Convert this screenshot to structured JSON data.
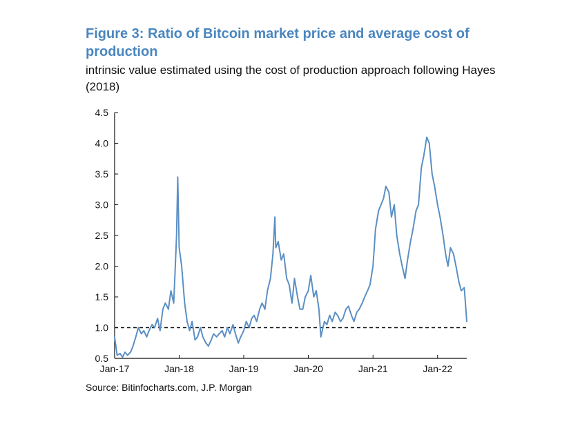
{
  "title": "Figure 3: Ratio of Bitcoin market price and average cost of production",
  "subtitle": "intrinsic value estimated using the cost of production approach following Hayes (2018)",
  "source": "Source: Bitinfocharts.com, J.P. Morgan",
  "colors": {
    "title": "#4a86bf",
    "series": "#5b8fc4",
    "axis": "#111111",
    "reference_line": "#111111"
  },
  "chart_data": {
    "type": "line",
    "title": "Figure 3: Ratio of Bitcoin market price and average cost of production",
    "subtitle": "intrinsic value estimated using the cost of production approach following Hayes (2018)",
    "xlabel": "",
    "ylabel": "",
    "grid": false,
    "legend": "none",
    "ylim": [
      0.5,
      4.5
    ],
    "xlim": [
      "2017-01-01",
      "2022-06-15"
    ],
    "x_ticks": [
      {
        "date": "2017-01-01",
        "label": "Jan-17"
      },
      {
        "date": "2018-01-01",
        "label": "Jan-18"
      },
      {
        "date": "2019-01-01",
        "label": "Jan-19"
      },
      {
        "date": "2020-01-01",
        "label": "Jan-20"
      },
      {
        "date": "2021-01-01",
        "label": "Jan-21"
      },
      {
        "date": "2022-01-01",
        "label": "Jan-22"
      }
    ],
    "y_ticks": [
      "0.5",
      "1.0",
      "1.5",
      "2.0",
      "2.5",
      "3.0",
      "3.5",
      "4.0",
      "4.5"
    ],
    "reference_line": {
      "y": 1.0,
      "style": "dashed"
    },
    "series": [
      {
        "x": [
          "2017-01-01",
          "2017-01-15",
          "2017-02-01",
          "2017-02-15",
          "2017-03-01",
          "2017-03-15",
          "2017-04-01",
          "2017-04-15",
          "2017-05-01",
          "2017-05-15",
          "2017-06-01",
          "2017-06-15",
          "2017-07-01",
          "2017-07-15",
          "2017-08-01",
          "2017-08-15",
          "2017-09-01",
          "2017-09-15",
          "2017-10-01",
          "2017-10-15",
          "2017-11-01",
          "2017-11-15",
          "2017-12-01",
          "2017-12-10",
          "2017-12-17",
          "2017-12-24",
          "2018-01-01",
          "2018-01-15",
          "2018-02-01",
          "2018-02-15",
          "2018-03-01",
          "2018-03-15",
          "2018-04-01",
          "2018-04-15",
          "2018-05-01",
          "2018-05-15",
          "2018-06-01",
          "2018-06-15",
          "2018-07-01",
          "2018-07-15",
          "2018-08-01",
          "2018-08-15",
          "2018-09-01",
          "2018-09-15",
          "2018-10-01",
          "2018-10-15",
          "2018-11-01",
          "2018-11-15",
          "2018-12-01",
          "2018-12-15",
          "2019-01-01",
          "2019-01-15",
          "2019-02-01",
          "2019-02-15",
          "2019-03-01",
          "2019-03-15",
          "2019-04-01",
          "2019-04-15",
          "2019-05-01",
          "2019-05-15",
          "2019-06-01",
          "2019-06-15",
          "2019-06-26",
          "2019-07-01",
          "2019-07-15",
          "2019-08-01",
          "2019-08-15",
          "2019-09-01",
          "2019-09-15",
          "2019-10-01",
          "2019-10-15",
          "2019-11-01",
          "2019-11-15",
          "2019-12-01",
          "2019-12-15",
          "2020-01-01",
          "2020-01-15",
          "2020-02-01",
          "2020-02-15",
          "2020-03-01",
          "2020-03-12",
          "2020-03-20",
          "2020-04-01",
          "2020-04-15",
          "2020-05-01",
          "2020-05-15",
          "2020-06-01",
          "2020-06-15",
          "2020-07-01",
          "2020-07-15",
          "2020-08-01",
          "2020-08-15",
          "2020-09-01",
          "2020-09-15",
          "2020-10-01",
          "2020-10-15",
          "2020-11-01",
          "2020-11-15",
          "2020-12-01",
          "2020-12-15",
          "2021-01-01",
          "2021-01-15",
          "2021-02-01",
          "2021-02-15",
          "2021-03-01",
          "2021-03-15",
          "2021-04-01",
          "2021-04-15",
          "2021-05-01",
          "2021-05-15",
          "2021-06-01",
          "2021-06-15",
          "2021-07-01",
          "2021-07-15",
          "2021-08-01",
          "2021-08-15",
          "2021-09-01",
          "2021-09-15",
          "2021-10-01",
          "2021-10-15",
          "2021-11-01",
          "2021-11-15",
          "2021-12-01",
          "2021-12-15",
          "2022-01-01",
          "2022-01-15",
          "2022-02-01",
          "2022-02-15",
          "2022-03-01",
          "2022-03-15",
          "2022-04-01",
          "2022-04-15",
          "2022-05-01",
          "2022-05-15",
          "2022-06-01",
          "2022-06-15"
        ],
        "y": [
          0.85,
          0.55,
          0.58,
          0.52,
          0.6,
          0.55,
          0.6,
          0.7,
          0.85,
          1.0,
          0.9,
          0.95,
          0.85,
          0.95,
          1.05,
          1.0,
          1.15,
          0.95,
          1.3,
          1.4,
          1.3,
          1.6,
          1.4,
          2.0,
          2.5,
          3.45,
          2.3,
          2.0,
          1.4,
          1.1,
          0.95,
          1.1,
          0.8,
          0.85,
          1.0,
          0.85,
          0.75,
          0.7,
          0.8,
          0.9,
          0.85,
          0.9,
          0.95,
          0.85,
          1.0,
          0.9,
          1.05,
          0.9,
          0.75,
          0.85,
          0.95,
          1.1,
          1.0,
          1.15,
          1.2,
          1.1,
          1.3,
          1.4,
          1.3,
          1.6,
          1.8,
          2.2,
          2.8,
          2.3,
          2.4,
          2.1,
          2.2,
          1.8,
          1.7,
          1.4,
          1.8,
          1.5,
          1.3,
          1.3,
          1.5,
          1.6,
          1.85,
          1.5,
          1.6,
          1.3,
          0.85,
          0.95,
          1.1,
          1.05,
          1.2,
          1.1,
          1.25,
          1.2,
          1.1,
          1.15,
          1.3,
          1.35,
          1.2,
          1.1,
          1.25,
          1.3,
          1.4,
          1.5,
          1.6,
          1.7,
          2.0,
          2.6,
          2.9,
          3.0,
          3.1,
          3.3,
          3.2,
          2.8,
          3.0,
          2.5,
          2.2,
          2.0,
          1.8,
          2.1,
          2.4,
          2.6,
          2.9,
          3.0,
          3.6,
          3.8,
          4.1,
          4.0,
          3.5,
          3.3,
          3.0,
          2.8,
          2.5,
          2.2,
          2.0,
          2.3,
          2.2,
          2.0,
          1.75,
          1.6,
          1.65,
          1.1
        ]
      }
    ]
  }
}
